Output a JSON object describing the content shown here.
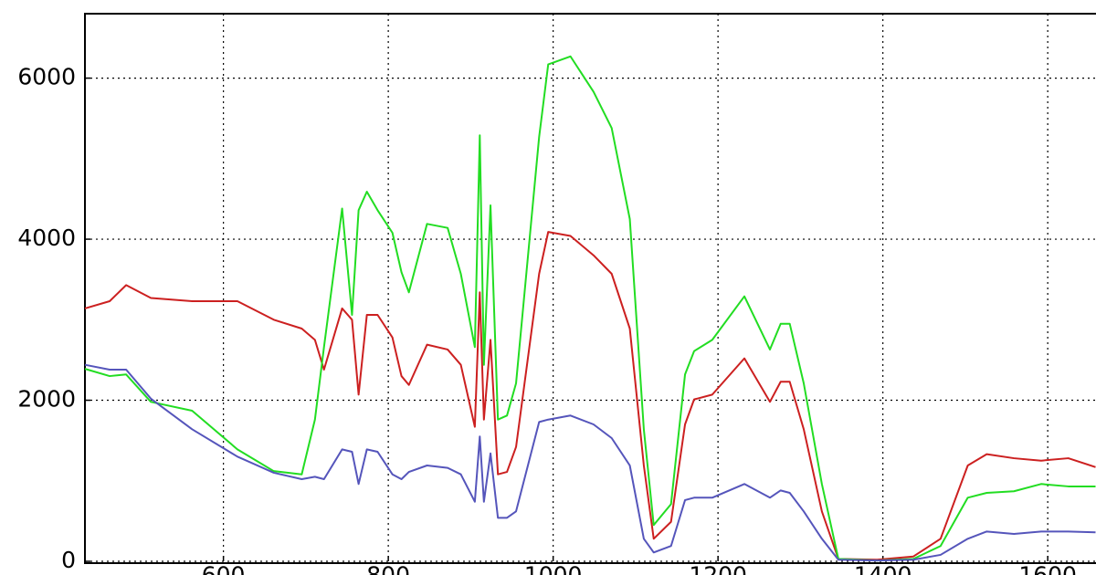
{
  "chart_data": {
    "type": "line",
    "x": [
      432,
      462,
      482,
      512,
      562,
      617,
      661,
      695,
      711,
      722,
      744,
      756,
      764,
      774,
      787,
      805,
      816,
      825,
      847,
      872,
      888,
      905,
      911,
      916,
      924,
      933,
      944,
      955,
      983,
      994,
      1021,
      1049,
      1071,
      1093,
      1110,
      1122,
      1143,
      1160,
      1171,
      1193,
      1232,
      1263,
      1276,
      1287,
      1304,
      1326,
      1346,
      1393,
      1437,
      1470,
      1503,
      1526,
      1559,
      1592,
      1625,
      1658
    ],
    "series": [
      {
        "color": "#cc2020",
        "values": [
          3140,
          3230,
          3430,
          3270,
          3230,
          3230,
          3000,
          2890,
          2750,
          2380,
          3140,
          3000,
          2070,
          3060,
          3060,
          2780,
          2300,
          2190,
          2690,
          2630,
          2440,
          1670,
          3340,
          1760,
          2750,
          1080,
          1110,
          1420,
          3570,
          4090,
          4040,
          3800,
          3570,
          2890,
          1190,
          280,
          490,
          1700,
          2010,
          2070,
          2520,
          1980,
          2230,
          2230,
          1640,
          620,
          30,
          20,
          60,
          280,
          1190,
          1330,
          1280,
          1250,
          1280,
          1170
        ]
      },
      {
        "color": "#22dd22",
        "values": [
          2390,
          2300,
          2320,
          1980,
          1870,
          1390,
          1120,
          1080,
          1760,
          2660,
          4380,
          3060,
          4360,
          4590,
          4360,
          4080,
          3590,
          3340,
          4190,
          4140,
          3570,
          2660,
          5290,
          2440,
          4420,
          1760,
          1810,
          2210,
          5270,
          6170,
          6270,
          5830,
          5380,
          4250,
          1640,
          450,
          710,
          2320,
          2610,
          2750,
          3290,
          2630,
          2950,
          2950,
          2210,
          960,
          30,
          10,
          30,
          190,
          790,
          850,
          870,
          960,
          930,
          930
        ]
      },
      {
        "color": "#5555bb",
        "values": [
          2440,
          2380,
          2380,
          2020,
          1640,
          1300,
          1100,
          1020,
          1050,
          1020,
          1390,
          1360,
          960,
          1390,
          1360,
          1080,
          1020,
          1110,
          1190,
          1160,
          1080,
          740,
          1550,
          740,
          1340,
          540,
          540,
          620,
          1730,
          1760,
          1810,
          1700,
          1530,
          1190,
          280,
          110,
          190,
          760,
          790,
          790,
          960,
          790,
          880,
          850,
          620,
          280,
          20,
          10,
          20,
          80,
          280,
          370,
          340,
          370,
          370,
          360
        ]
      }
    ],
    "xlim": [
      432,
      1658
    ],
    "ylim": [
      0,
      6800
    ],
    "xticks": [
      600,
      800,
      1000,
      1200,
      1400,
      1600
    ],
    "yticks": [
      0,
      2000,
      4000,
      6000
    ],
    "grid": true
  }
}
